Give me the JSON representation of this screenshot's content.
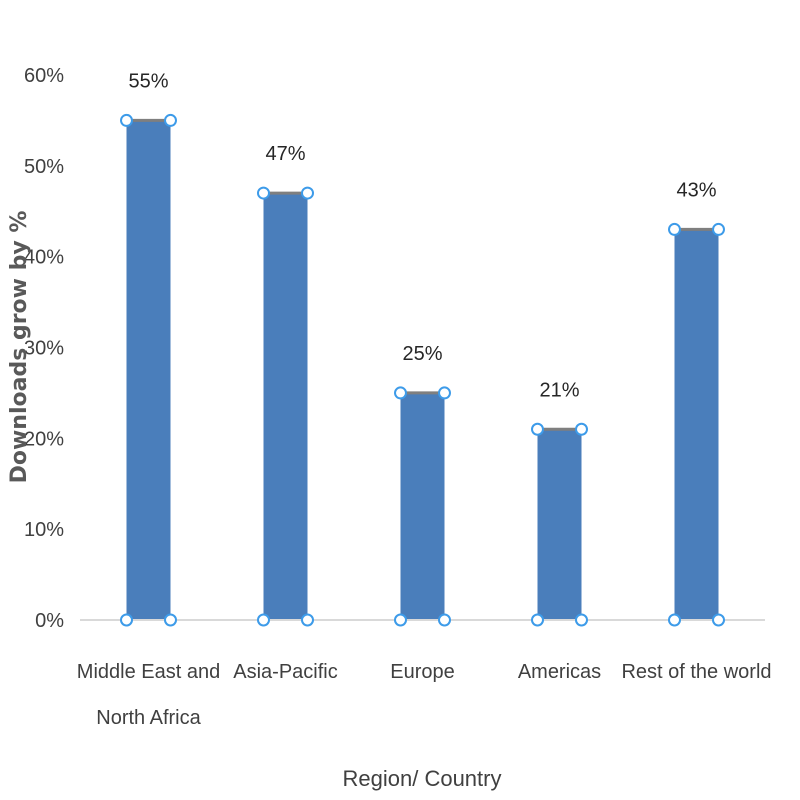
{
  "chart_data": {
    "type": "bar",
    "categories": [
      "Middle East and North Africa",
      "Asia-Pacific",
      "Europe",
      "Americas",
      "Rest of the world"
    ],
    "category_lines": [
      [
        "Middle East and",
        "North Africa"
      ],
      [
        "Asia-Pacific"
      ],
      [
        "Europe"
      ],
      [
        "Americas"
      ],
      [
        "Rest of the world"
      ]
    ],
    "values": [
      55,
      47,
      25,
      21,
      43
    ],
    "data_labels": [
      "55%",
      "47%",
      "25%",
      "21%",
      "43%"
    ],
    "title": "",
    "xlabel": "Region/ Country",
    "ylabel": "Downloads grow by %",
    "ylim": [
      0,
      60
    ],
    "yticks": [
      "0%",
      "10%",
      "20%",
      "30%",
      "40%",
      "50%",
      "60%"
    ],
    "grid": false,
    "legend": "none",
    "colors": {
      "bar": "#4a7ebb",
      "bar_top": "#7f7f7f",
      "handle_stroke": "#3d9be9",
      "handle_fill": "#ffffff",
      "axis": "#d9d9d9"
    }
  }
}
